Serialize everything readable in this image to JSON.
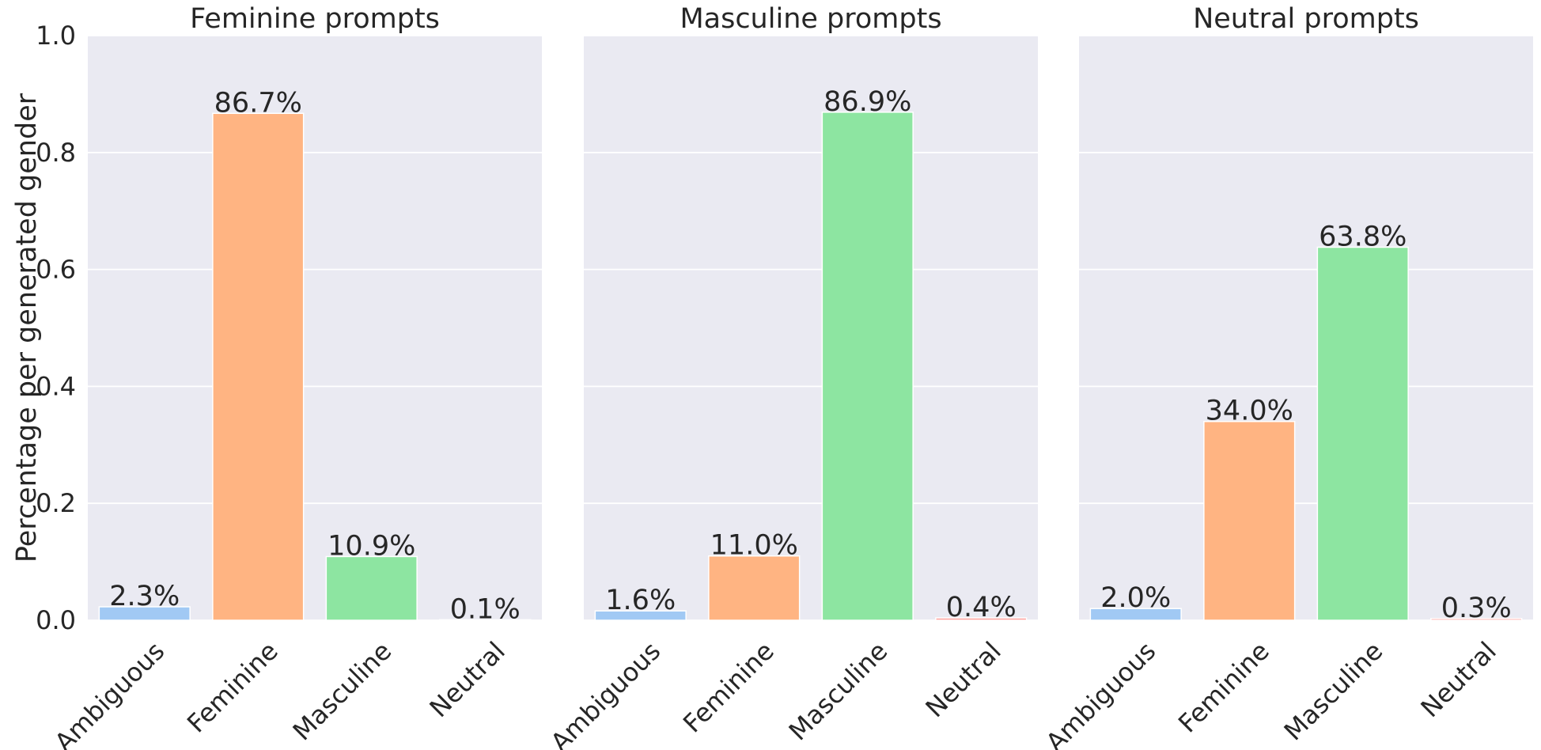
{
  "chart_data": {
    "type": "bar",
    "layout": "three side-by-side panels, shared y-axis",
    "ylabel": "Percentage per generated gender",
    "ylim": [
      0,
      1.0
    ],
    "yticks": [
      0.0,
      0.2,
      0.4,
      0.6,
      0.8,
      1.0
    ],
    "ytick_labels": [
      "0.0",
      "0.2",
      "0.4",
      "0.6",
      "0.8",
      "1.0"
    ],
    "grid": true,
    "categories": [
      "Ambiguous",
      "Feminine",
      "Masculine",
      "Neutral"
    ],
    "colors": [
      "#a1c9f4",
      "#ffb482",
      "#8de5a1",
      "#ff9f9b"
    ],
    "panels": [
      {
        "title": "Feminine prompts",
        "values": [
          0.023,
          0.867,
          0.109,
          0.001
        ],
        "labels": [
          "2.3%",
          "86.7%",
          "10.9%",
          "0.1%"
        ]
      },
      {
        "title": "Masculine prompts",
        "values": [
          0.016,
          0.11,
          0.869,
          0.004
        ],
        "labels": [
          "1.6%",
          "11.0%",
          "86.9%",
          "0.4%"
        ]
      },
      {
        "title": "Neutral prompts",
        "values": [
          0.02,
          0.34,
          0.638,
          0.003
        ],
        "labels": [
          "2.0%",
          "34.0%",
          "63.8%",
          "0.3%"
        ]
      }
    ]
  }
}
